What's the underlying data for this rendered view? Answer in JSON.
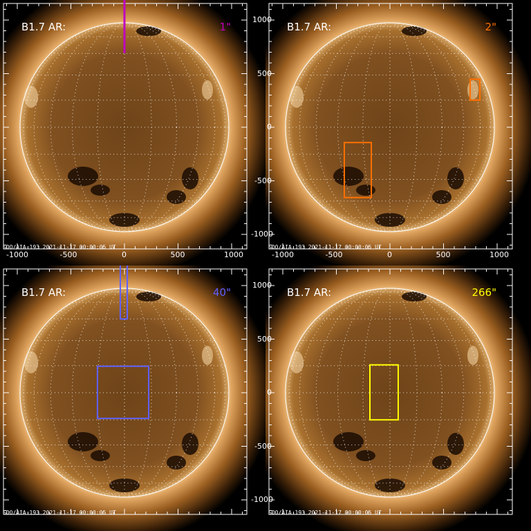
{
  "footer": "SDO/AIA 193  2021-11-17 00:00:05 UT",
  "x_ticks": [
    -1000,
    -500,
    0,
    500,
    1000
  ],
  "y_ticks": [
    1000,
    500,
    0,
    -500,
    -1000
  ],
  "panels": [
    {
      "label": "B1.7 AR:",
      "size_label": "1\"",
      "color": "#c000c0",
      "marks": [
        {
          "type": "line",
          "x": 0,
          "y": [
            690,
            1200
          ]
        }
      ]
    },
    {
      "label": "B1.7 AR:",
      "size_label": "2\"",
      "color": "#ff7000",
      "marks": [
        {
          "type": "box",
          "x": [
            748,
            839
          ],
          "y": [
            253,
            448
          ]
        },
        {
          "type": "box",
          "x": [
            -426,
            -174
          ],
          "y": [
            -656,
            -143
          ]
        }
      ]
    },
    {
      "label": "B1.7 AR:",
      "size_label": "40\"",
      "color": "#6060ff",
      "marks": [
        {
          "type": "box",
          "x": [
            -39,
            26
          ],
          "y": [
            688,
            1208
          ]
        },
        {
          "type": "box",
          "x": [
            -252,
            226
          ],
          "y": [
            -240,
            247
          ]
        }
      ]
    },
    {
      "label": "B1.7 AR:",
      "size_label": "266\"",
      "color": "#ffff00",
      "marks": [
        {
          "type": "box",
          "x": [
            -187,
            77
          ],
          "y": [
            -253,
            260
          ]
        }
      ]
    }
  ]
}
